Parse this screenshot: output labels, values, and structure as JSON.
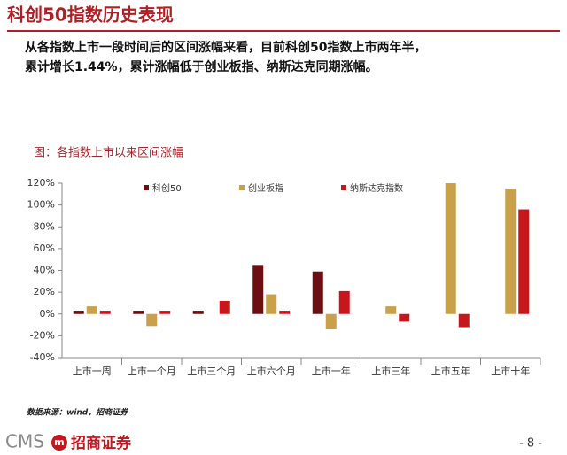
{
  "header": {
    "title": "科创50指数历史表现",
    "paragraph": [
      "从各指数上市一段时间后的区间涨幅来看，目前科创50指数上市两年半，",
      "累计增长1.44%，累计涨幅低于创业板指、纳斯达克同期涨幅。"
    ]
  },
  "chart_data": {
    "type": "bar",
    "title": "图：各指数上市以来区间涨幅",
    "categories": [
      "上市一周",
      "上市一个月",
      "上市三个月",
      "上市六个月",
      "上市一年",
      "上市三年",
      "上市五年",
      "上市十年"
    ],
    "series": [
      {
        "name": "科创50",
        "color": "#6b0f12",
        "values": [
          3,
          3,
          3,
          45,
          39,
          null,
          null,
          null
        ]
      },
      {
        "name": "创业板指",
        "color": "#c9a14a",
        "values": [
          7,
          -11,
          0,
          18,
          -14,
          7,
          120,
          115
        ]
      },
      {
        "name": "纳斯达克指数",
        "color": "#c8161d",
        "values": [
          3,
          3,
          12,
          3,
          21,
          -7,
          -12,
          96
        ]
      }
    ],
    "ylim": [
      -40,
      120
    ],
    "yticks": [
      {
        "value": -40,
        "label": "-40%"
      },
      {
        "value": -20,
        "label": "-20%"
      },
      {
        "value": 0,
        "label": "0%"
      },
      {
        "value": 20,
        "label": "20%"
      },
      {
        "value": 40,
        "label": "40%"
      },
      {
        "value": 60,
        "label": "60%"
      },
      {
        "value": 80,
        "label": "80%"
      },
      {
        "value": 100,
        "label": "100%"
      },
      {
        "value": 120,
        "label": "120%"
      }
    ],
    "grid": false,
    "legend": "top"
  },
  "source": "数据来源：wind，招商证券",
  "footer": {
    "logo": "CMS",
    "logo_mark": "m",
    "brand": "招商证券",
    "page": "- 8 -"
  }
}
